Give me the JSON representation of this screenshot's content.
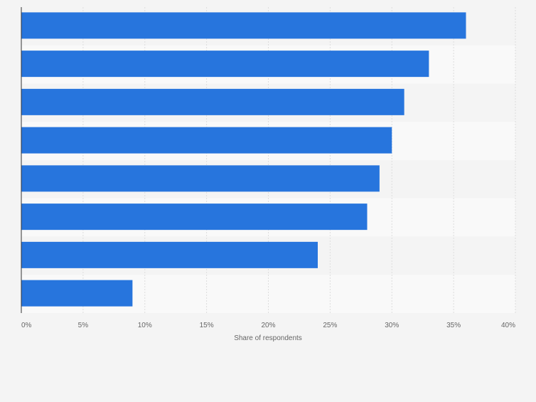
{
  "chart_data": {
    "type": "bar",
    "orientation": "horizontal",
    "categories": [
      "",
      "",
      "",
      "",
      "",
      "",
      "",
      ""
    ],
    "values": [
      36,
      33,
      31,
      30,
      29,
      28,
      24,
      9
    ],
    "xlabel": "Share of respondents",
    "ylabel": "",
    "xlim": [
      0,
      40
    ],
    "x_tick_labels": [
      "0%",
      "5%",
      "10%",
      "15%",
      "20%",
      "25%",
      "30%",
      "35%",
      "40%"
    ],
    "x_tick_values": [
      0,
      5,
      10,
      15,
      20,
      25,
      30,
      35,
      40
    ],
    "grid": true,
    "bar_color": "#2775dd",
    "background_color": "#f4f4f4",
    "band_colors": [
      "#f4f4f4",
      "#f9f9f9"
    ]
  }
}
